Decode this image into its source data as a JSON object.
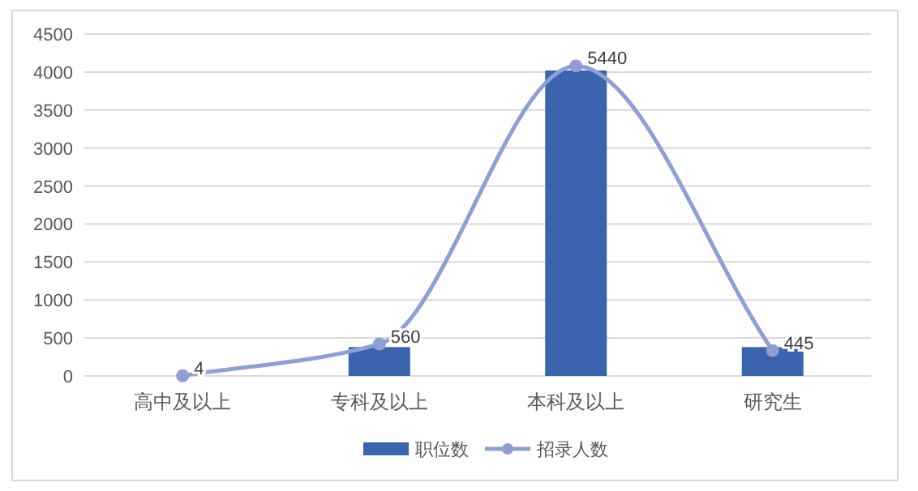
{
  "chart_data": {
    "type": "bar",
    "categories": [
      "高中及以上",
      "专科及以上",
      "本科及以上",
      "研究生"
    ],
    "series": [
      {
        "name": "职位数",
        "color": "#3a64ae",
        "values": [
          0,
          380,
          4020,
          380
        ]
      },
      {
        "name": "招录人数",
        "type": "line",
        "axis": "y2",
        "color": "#8e9fd5",
        "values": [
          4,
          560,
          5440,
          445
        ],
        "value_labels": [
          "4",
          "560",
          "5440",
          "445"
        ]
      }
    ],
    "ylim": [
      0,
      4500
    ],
    "yticks": [
      0,
      500,
      1000,
      1500,
      2000,
      2500,
      3000,
      3500,
      4000,
      4500
    ],
    "y2lim": [
      0,
      6000
    ],
    "grid": "y",
    "legend": "bottom",
    "marker": "circle",
    "line_style": "solid"
  }
}
